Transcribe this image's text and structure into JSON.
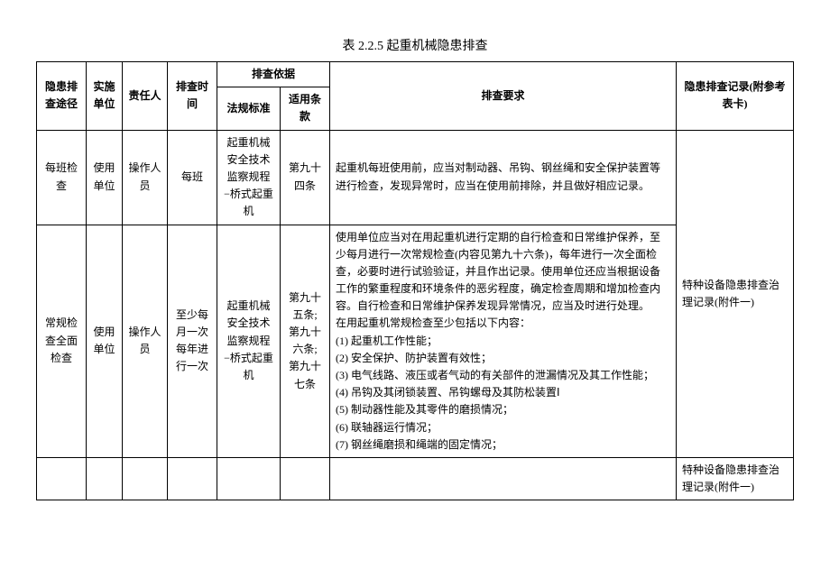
{
  "title": "表 2.2.5 起重机械隐患排查",
  "header": {
    "route": "隐患排查途径",
    "unit": "实施单位",
    "resp": "责任人",
    "time": "排查时间",
    "basis": "排查依据",
    "basis_std": "法规标准",
    "basis_clause": "适用条款",
    "req": "排查要求",
    "record": "隐患排查记录(附参考表卡)"
  },
  "row1": {
    "route": "每班检查",
    "unit": "使用单位",
    "resp": "操作人员",
    "time": "每班",
    "std": "起重机械安全技术监察规程−桥式起重机",
    "clause": "第九十四条",
    "req": "起重机每班使用前，应当对制动器、吊钩、钢丝绳和安全保护装置等进行检查，发现异常时，应当在使用前排除，并且做好相应记录。",
    "record": "特种设备隐患排查治理记录(附件一)"
  },
  "row2": {
    "route": "常规检查全面检查",
    "unit": "使用单位",
    "resp": "操作人员",
    "time": "至少每月一次每年进行一次",
    "std": "起重机械安全技术监察规程−桥式起重机",
    "clause": "第九十五条;\n第九十六条;\n第九十七条",
    "req": "使用单位应当对在用起重机进行定期的自行检查和日常维护保养，至少每月进行一次常规检查(内容见第九十六条)，每年进行一次全面检查，必要时进行试验验证，并且作出记录。使用单位还应当根据设备工作的繁重程度和环境条件的恶劣程度，确定检查周期和增加检查内容。自行检查和日常维护保养发现异常情况，应当及时进行处理。\n在用起重机常规检查至少包括以下内容：\n(1) 起重机工作性能；\n(2) 安全保护、防护装置有效性；\n(3) 电气线路、液压或者气动的有关部件的泄漏情况及其工作性能；\n(4) 吊钩及其闭锁装置、吊钩螺母及其防松装置Ⅰ\n(5) 制动器性能及其零件的磨损情况；\n(6) 联轴器运行情况；\n(7) 钢丝绳磨损和绳端的固定情况；",
    "record": "特种设备隐患排查治理记录(附件一)"
  }
}
